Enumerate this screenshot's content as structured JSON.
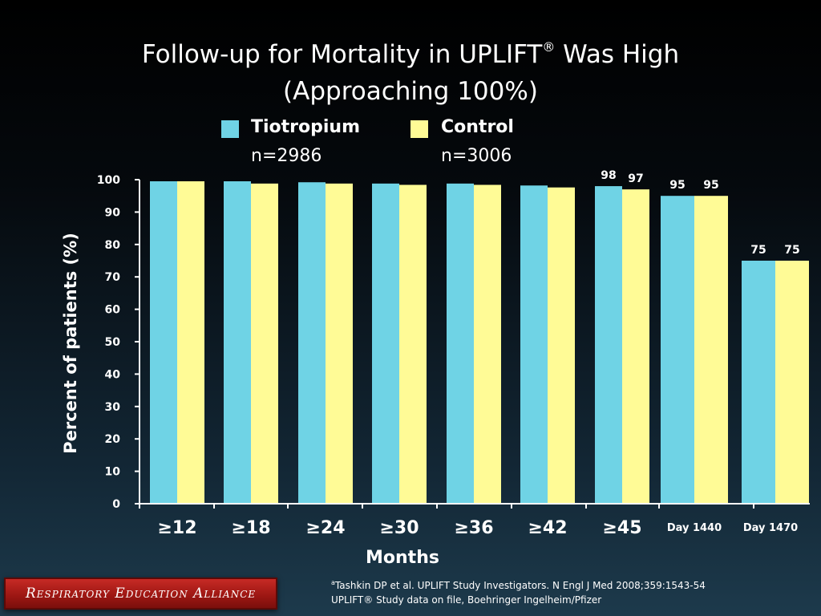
{
  "title": {
    "line1": "Follow-up for Mortality in UPLIFT",
    "reg": "®",
    "line1_end": " Was High",
    "line2": "(Approaching 100%)"
  },
  "legend": {
    "tiotropium": {
      "name": "Tiotropium",
      "n": "n=2986",
      "color": "#6fd3e5"
    },
    "control": {
      "name": "Control",
      "n": "n=3006",
      "color": "#fffb96"
    }
  },
  "chart_data": {
    "type": "bar",
    "categories": [
      "≥12",
      "≥18",
      "≥24",
      "≥30",
      "≥36",
      "≥42",
      "≥45",
      "Day 1440",
      "Day 1470"
    ],
    "series": [
      {
        "name": "Tiotropium",
        "values": [
          99.5,
          99.5,
          99.2,
          98.8,
          98.8,
          98.2,
          98,
          95,
          75
        ]
      },
      {
        "name": "Control",
        "values": [
          99.5,
          98.8,
          98.8,
          98.4,
          98.4,
          97.6,
          97,
          95,
          75
        ]
      }
    ],
    "data_labels": [
      {
        "category_index": 6,
        "series_index": 0,
        "text": "98"
      },
      {
        "category_index": 6,
        "series_index": 1,
        "text": "97"
      },
      {
        "category_index": 7,
        "series_index": 0,
        "text": "95"
      },
      {
        "category_index": 7,
        "series_index": 1,
        "text": "95"
      },
      {
        "category_index": 8,
        "series_index": 0,
        "text": "75"
      },
      {
        "category_index": 8,
        "series_index": 1,
        "text": "75"
      }
    ],
    "yticks": [
      0,
      10,
      20,
      30,
      40,
      50,
      60,
      70,
      80,
      90,
      100
    ],
    "ylim": [
      0,
      100
    ],
    "ylabel": "Percent of patients (%)",
    "xlabel": "Months",
    "grid": false,
    "legend_position": "top-center"
  },
  "source": {
    "marker": "a",
    "line1": "Tashkin DP et al. UPLIFT Study Investigators. N Engl J Med 2008;359:1543-54",
    "line2": "UPLIFT® Study data on file, Boehringer Ingelheim/Pfizer"
  },
  "brand": {
    "text": "Respiratory Education Alliance",
    "color": "#b01e1a"
  }
}
